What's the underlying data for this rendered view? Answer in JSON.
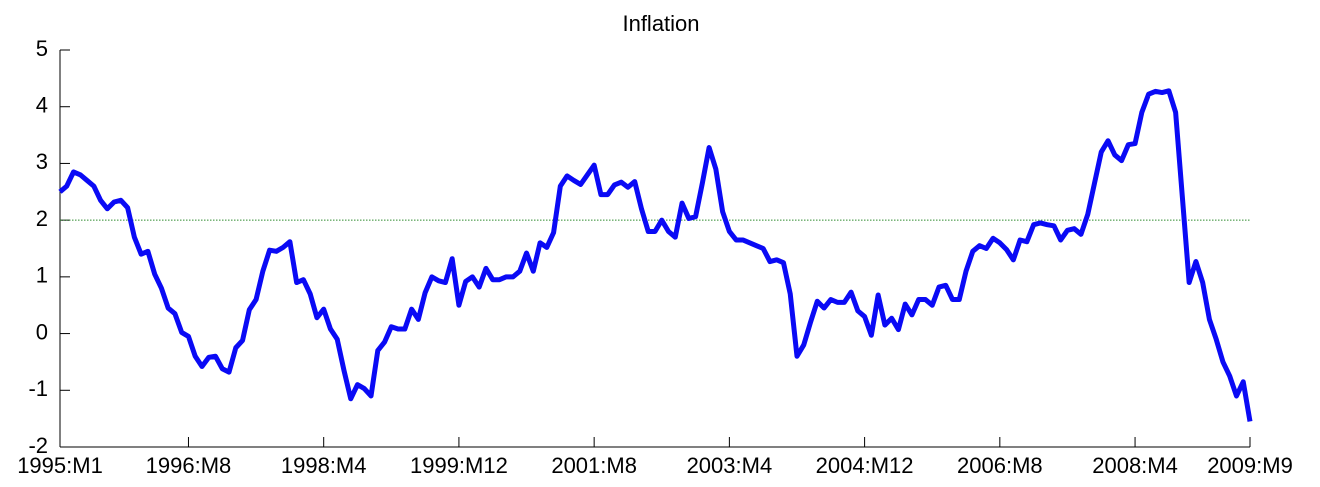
{
  "chart_data": {
    "type": "line",
    "title": "Inflation",
    "categories": [
      "1995:M1",
      null,
      null,
      null,
      null,
      null,
      null,
      null,
      null,
      null,
      null,
      null,
      null,
      null,
      null,
      null,
      null,
      null,
      null,
      "1996:M8",
      null,
      null,
      null,
      null,
      null,
      null,
      null,
      null,
      null,
      null,
      null,
      null,
      null,
      null,
      null,
      null,
      null,
      null,
      null,
      "1998:M4",
      null,
      null,
      null,
      null,
      null,
      null,
      null,
      null,
      null,
      null,
      null,
      null,
      null,
      null,
      null,
      null,
      null,
      null,
      null,
      "1999:M12",
      null,
      null,
      null,
      null,
      null,
      null,
      null,
      null,
      null,
      null,
      null,
      null,
      null,
      null,
      null,
      null,
      null,
      null,
      null,
      "2001:M8",
      null,
      null,
      null,
      null,
      null,
      null,
      null,
      null,
      null,
      null,
      null,
      null,
      null,
      null,
      null,
      null,
      null,
      null,
      null,
      "2003:M4",
      null,
      null,
      null,
      null,
      null,
      null,
      null,
      null,
      null,
      null,
      null,
      null,
      null,
      null,
      null,
      null,
      null,
      null,
      null,
      "2004:M12",
      null,
      null,
      null,
      null,
      null,
      null,
      null,
      null,
      null,
      null,
      null,
      null,
      null,
      null,
      null,
      null,
      null,
      null,
      null,
      "2006:M8",
      null,
      null,
      null,
      null,
      null,
      null,
      null,
      null,
      null,
      null,
      null,
      null,
      null,
      null,
      null,
      null,
      null,
      null,
      null,
      "2008:M4",
      null,
      null,
      null,
      null,
      null,
      null,
      null,
      null,
      null,
      null,
      null,
      null,
      null,
      null,
      null,
      null,
      "2009:M9"
    ],
    "values": [
      2.5,
      2.6,
      2.85,
      2.8,
      2.7,
      2.6,
      2.35,
      2.2,
      2.32,
      2.35,
      2.22,
      1.7,
      1.4,
      1.45,
      1.05,
      0.8,
      0.45,
      0.35,
      0.02,
      -0.05,
      -0.4,
      -0.58,
      -0.42,
      -0.4,
      -0.62,
      -0.68,
      -0.25,
      -0.12,
      0.42,
      0.6,
      1.1,
      1.47,
      1.45,
      1.52,
      1.62,
      0.9,
      0.95,
      0.7,
      0.28,
      0.43,
      0.08,
      -0.1,
      -0.65,
      -1.15,
      -0.9,
      -0.97,
      -1.1,
      -0.3,
      -0.15,
      0.12,
      0.08,
      0.08,
      0.43,
      0.25,
      0.72,
      1.0,
      0.93,
      0.9,
      1.32,
      0.5,
      0.92,
      1.0,
      0.82,
      1.15,
      0.95,
      0.95,
      1.0,
      1.0,
      1.1,
      1.42,
      1.1,
      1.6,
      1.52,
      1.78,
      2.6,
      2.78,
      2.7,
      2.63,
      2.8,
      2.97,
      2.45,
      2.45,
      2.62,
      2.67,
      2.58,
      2.68,
      2.2,
      1.8,
      1.8,
      2.0,
      1.8,
      1.7,
      2.3,
      2.03,
      2.06,
      2.65,
      3.28,
      2.9,
      2.15,
      1.8,
      1.65,
      1.65,
      1.6,
      1.55,
      1.5,
      1.27,
      1.3,
      1.25,
      0.7,
      -0.4,
      -0.2,
      0.2,
      0.57,
      0.45,
      0.6,
      0.55,
      0.55,
      0.73,
      0.4,
      0.3,
      -0.03,
      0.68,
      0.15,
      0.27,
      0.07,
      0.52,
      0.33,
      0.6,
      0.6,
      0.5,
      0.82,
      0.85,
      0.6,
      0.6,
      1.1,
      1.45,
      1.55,
      1.5,
      1.68,
      1.6,
      1.48,
      1.3,
      1.65,
      1.62,
      1.92,
      1.95,
      1.92,
      1.9,
      1.65,
      1.82,
      1.85,
      1.75,
      2.1,
      2.65,
      3.2,
      3.4,
      3.15,
      3.05,
      3.33,
      3.35,
      3.9,
      4.22,
      4.27,
      4.25,
      4.28,
      3.9,
      2.4,
      0.9,
      1.27,
      0.9,
      0.25,
      -0.1,
      -0.5,
      -0.75,
      -1.1,
      -0.85,
      -1.55
    ],
    "color": "#0a0af5",
    "ylim": [
      -2,
      5
    ],
    "yticks": [
      -2,
      -1,
      0,
      1,
      2,
      3,
      4,
      5
    ],
    "reference_line": {
      "value": 2,
      "color": "#2e8b2e"
    },
    "grid": false
  }
}
